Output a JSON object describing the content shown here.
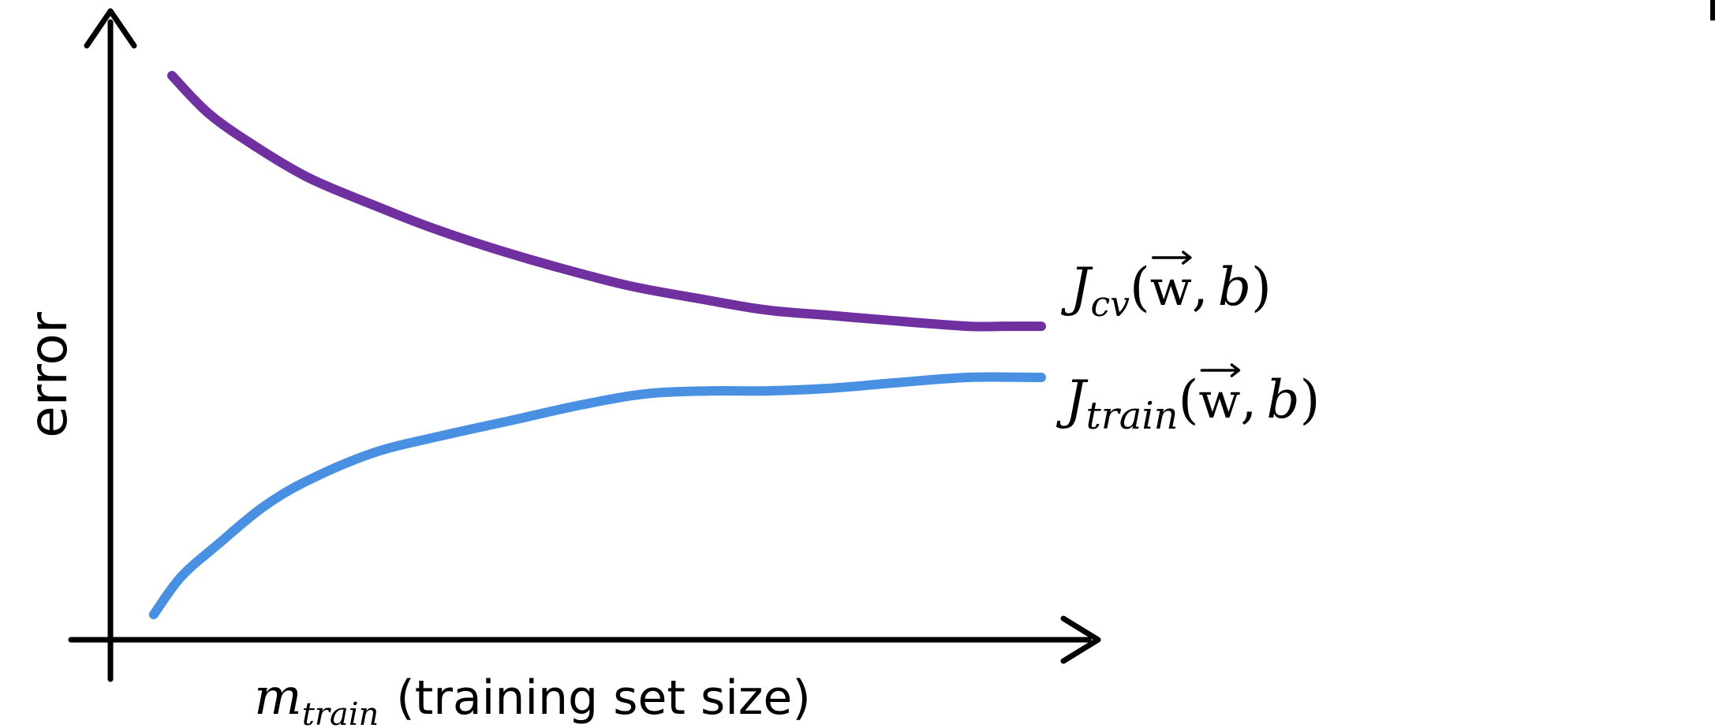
{
  "chart_data": {
    "type": "line",
    "title": "",
    "xlabel": {
      "symbol": "m",
      "subscript": "train",
      "text": "(training set size)"
    },
    "ylabel": "error",
    "xlim": [
      0,
      1
    ],
    "ylim": [
      0,
      1
    ],
    "grid": false,
    "legend": "inline-right",
    "series": [
      {
        "label": {
          "symbol": "J",
          "subscript": "cv",
          "open": "(",
          "vec": "w",
          "comma": ",",
          "param": "b",
          "close": ")"
        },
        "color": "#7030a0",
        "x": [
          0.05,
          0.09,
          0.14,
          0.2,
          0.27,
          0.33,
          0.4,
          0.47,
          0.55,
          0.63,
          0.7,
          0.77,
          0.84,
          0.92,
          0.96,
          1.0
        ],
        "y": [
          1.0,
          0.93,
          0.87,
          0.81,
          0.76,
          0.72,
          0.68,
          0.645,
          0.61,
          0.585,
          0.565,
          0.555,
          0.545,
          0.535,
          0.535,
          0.535
        ]
      },
      {
        "label": {
          "symbol": "J",
          "subscript": "train",
          "open": "(",
          "vec": "w",
          "comma": ",",
          "param": "b",
          "close": ")"
        },
        "color": "#4a90e2",
        "x": [
          0.03,
          0.06,
          0.1,
          0.15,
          0.2,
          0.27,
          0.34,
          0.42,
          0.5,
          0.57,
          0.64,
          0.7,
          0.77,
          0.84,
          0.92,
          1.0
        ],
        "y": [
          0.0,
          0.07,
          0.13,
          0.2,
          0.25,
          0.3,
          0.33,
          0.36,
          0.39,
          0.41,
          0.415,
          0.415,
          0.42,
          0.43,
          0.44,
          0.44
        ]
      }
    ]
  }
}
